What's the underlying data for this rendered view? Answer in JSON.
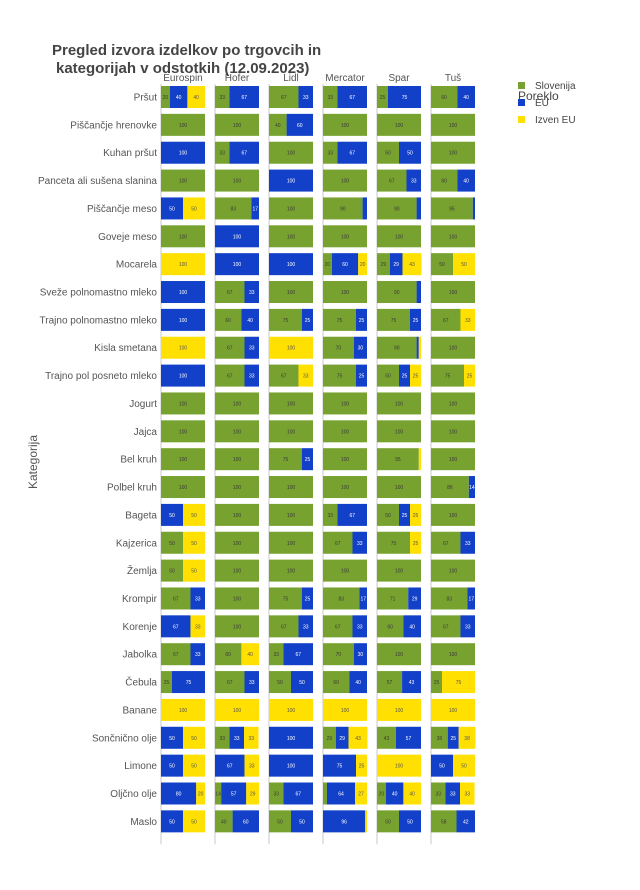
{
  "chart_data": {
    "type": "bar",
    "orientation": "horizontal",
    "stacked": true,
    "faceted_by": "store",
    "title_line1": "Pregled izvora izdelkov po trgovcih in",
    "title_line2": "kategorijah v odstotkih (12.09.2023)",
    "ylabel": "Kategorija",
    "xlim": [
      0,
      100
    ],
    "legend": {
      "title": "Poreklo",
      "position": "top-right",
      "items": [
        {
          "name": "Slovenija",
          "color": "#78A22F"
        },
        {
          "name": "EU",
          "color": "#1240C8"
        },
        {
          "name": "Izven EU",
          "color": "#FFE000"
        }
      ]
    },
    "stores": [
      "Eurospin",
      "Hofer",
      "Lidl",
      "Mercator",
      "Spar",
      "Tuš"
    ],
    "categories": [
      "Pršut",
      "Piščančje hrenovke",
      "Kuhan pršut",
      "Panceta ali sušena slanina",
      "Piščančje meso",
      "Goveje meso",
      "Mocarela",
      "Sveže polnomastno mleko",
      "Trajno polnomastno mleko",
      "Kisla smetana",
      "Trajno pol posneto mleko",
      "Jogurt",
      "Jajca",
      "Bel kruh",
      "Polbel kruh",
      "Bageta",
      "Kajzerica",
      "Žemlja",
      "Krompir",
      "Korenje",
      "Jabolka",
      "Čebula",
      "Banane",
      "Sončnično olje",
      "Limone",
      "Oljčno olje",
      "Maslo"
    ],
    "values": {
      "Eurospin": [
        [
          20,
          40,
          40
        ],
        [
          100,
          0,
          0
        ],
        [
          0,
          100,
          0
        ],
        [
          100,
          0,
          0
        ],
        [
          0,
          50,
          50
        ],
        [
          100,
          0,
          0
        ],
        [
          0,
          0,
          100
        ],
        [
          0,
          100,
          0
        ],
        [
          0,
          100,
          0
        ],
        [
          0,
          0,
          100
        ],
        [
          0,
          100,
          0
        ],
        [
          100,
          0,
          0
        ],
        [
          100,
          0,
          0
        ],
        [
          100,
          0,
          0
        ],
        [
          100,
          0,
          0
        ],
        [
          0,
          50,
          50
        ],
        [
          50,
          0,
          50
        ],
        [
          50,
          0,
          50
        ],
        [
          67,
          33,
          0
        ],
        [
          0,
          67,
          33
        ],
        [
          67,
          33,
          0
        ],
        [
          25,
          75,
          0
        ],
        [
          0,
          0,
          100
        ],
        [
          0,
          50,
          50
        ],
        [
          0,
          50,
          50
        ],
        [
          0,
          80,
          20
        ],
        [
          0,
          50,
          50
        ]
      ],
      "Hofer": [
        [
          33,
          67,
          0
        ],
        [
          100,
          0,
          0
        ],
        [
          33,
          67,
          0
        ],
        [
          100,
          0,
          0
        ],
        [
          83,
          17,
          0
        ],
        [
          0,
          100,
          0
        ],
        [
          0,
          100,
          0
        ],
        [
          67,
          33,
          0
        ],
        [
          60,
          40,
          0
        ],
        [
          67,
          33,
          0
        ],
        [
          67,
          33,
          0
        ],
        [
          100,
          0,
          0
        ],
        [
          100,
          0,
          0
        ],
        [
          100,
          0,
          0
        ],
        [
          100,
          0,
          0
        ],
        [
          100,
          0,
          0
        ],
        [
          100,
          0,
          0
        ],
        [
          100,
          0,
          0
        ],
        [
          100,
          0,
          0
        ],
        [
          100,
          0,
          0
        ],
        [
          60,
          0,
          40
        ],
        [
          67,
          33,
          0
        ],
        [
          0,
          0,
          100
        ],
        [
          33,
          33,
          33
        ],
        [
          0,
          67,
          33
        ],
        [
          14,
          57,
          29
        ],
        [
          40,
          60,
          0
        ]
      ],
      "Lidl": [
        [
          67,
          33,
          0
        ],
        [
          40,
          60,
          0
        ],
        [
          100,
          0,
          0
        ],
        [
          0,
          100,
          0
        ],
        [
          100,
          0,
          0
        ],
        [
          100,
          0,
          0
        ],
        [
          0,
          100,
          0
        ],
        [
          100,
          0,
          0
        ],
        [
          75,
          25,
          0
        ],
        [
          0,
          0,
          100
        ],
        [
          67,
          0,
          33
        ],
        [
          100,
          0,
          0
        ],
        [
          100,
          0,
          0
        ],
        [
          75,
          25,
          0
        ],
        [
          100,
          0,
          0
        ],
        [
          100,
          0,
          0
        ],
        [
          100,
          0,
          0
        ],
        [
          100,
          0,
          0
        ],
        [
          75,
          25,
          0
        ],
        [
          67,
          33,
          0
        ],
        [
          33,
          67,
          0
        ],
        [
          50,
          50,
          0
        ],
        [
          0,
          0,
          100
        ],
        [
          0,
          100,
          0
        ],
        [
          0,
          100,
          0
        ],
        [
          33,
          67,
          0
        ],
        [
          50,
          50,
          0
        ]
      ],
      "Mercator": [
        [
          33,
          67,
          0
        ],
        [
          100,
          0,
          0
        ],
        [
          33,
          67,
          0
        ],
        [
          100,
          0,
          0
        ],
        [
          90,
          10,
          0
        ],
        [
          100,
          0,
          0
        ],
        [
          20,
          60,
          20
        ],
        [
          100,
          0,
          0
        ],
        [
          75,
          25,
          0
        ],
        [
          70,
          30,
          0
        ],
        [
          75,
          25,
          0
        ],
        [
          100,
          0,
          0
        ],
        [
          100,
          0,
          0
        ],
        [
          100,
          0,
          0
        ],
        [
          100,
          0,
          0
        ],
        [
          33,
          67,
          0
        ],
        [
          67,
          33,
          0
        ],
        [
          100,
          0,
          0
        ],
        [
          83,
          17,
          0
        ],
        [
          67,
          33,
          0
        ],
        [
          70,
          30,
          0
        ],
        [
          60,
          40,
          0
        ],
        [
          0,
          0,
          100
        ],
        [
          29,
          29,
          43
        ],
        [
          0,
          75,
          25
        ],
        [
          9,
          64,
          27
        ],
        [
          0,
          96,
          4
        ]
      ],
      "Spar": [
        [
          25,
          75,
          0
        ],
        [
          100,
          0,
          0
        ],
        [
          50,
          50,
          0
        ],
        [
          67,
          33,
          0
        ],
        [
          90,
          10,
          0
        ],
        [
          100,
          0,
          0
        ],
        [
          29,
          29,
          43
        ],
        [
          90,
          10,
          0
        ],
        [
          75,
          25,
          0
        ],
        [
          90,
          5,
          5
        ],
        [
          50,
          25,
          25
        ],
        [
          100,
          0,
          0
        ],
        [
          100,
          0,
          0
        ],
        [
          95,
          0,
          5
        ],
        [
          100,
          0,
          0
        ],
        [
          50,
          25,
          25
        ],
        [
          75,
          0,
          25
        ],
        [
          100,
          0,
          0
        ],
        [
          71,
          29,
          0
        ],
        [
          60,
          40,
          0
        ],
        [
          100,
          0,
          0
        ],
        [
          57,
          43,
          0
        ],
        [
          0,
          0,
          100
        ],
        [
          43,
          57,
          0
        ],
        [
          0,
          0,
          100
        ],
        [
          20,
          40,
          40
        ],
        [
          50,
          50,
          0
        ]
      ],
      "Tuš": [
        [
          60,
          40,
          0
        ],
        [
          100,
          0,
          0
        ],
        [
          100,
          0,
          0
        ],
        [
          60,
          40,
          0
        ],
        [
          95,
          5,
          0
        ],
        [
          100,
          0,
          0
        ],
        [
          50,
          0,
          50
        ],
        [
          100,
          0,
          0
        ],
        [
          67,
          0,
          33
        ],
        [
          100,
          0,
          0
        ],
        [
          75,
          0,
          25
        ],
        [
          100,
          0,
          0
        ],
        [
          100,
          0,
          0
        ],
        [
          100,
          0,
          0
        ],
        [
          86,
          14,
          0
        ],
        [
          100,
          0,
          0
        ],
        [
          67,
          33,
          0
        ],
        [
          100,
          0,
          0
        ],
        [
          83,
          17,
          0
        ],
        [
          67,
          33,
          0
        ],
        [
          100,
          0,
          0
        ],
        [
          25,
          0,
          75
        ],
        [
          0,
          0,
          100
        ],
        [
          38,
          25,
          38
        ],
        [
          0,
          50,
          50
        ],
        [
          33,
          33,
          33
        ],
        [
          58,
          42,
          0
        ]
      ]
    }
  }
}
